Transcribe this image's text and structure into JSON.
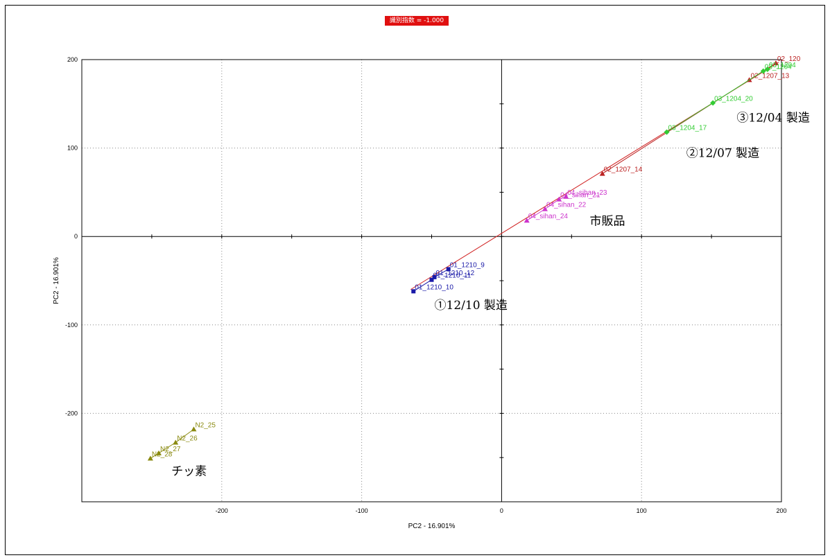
{
  "badge": {
    "text": "識別指数 = -1.000",
    "color": "#e01010"
  },
  "chart_data": {
    "type": "scatter",
    "title": "",
    "xlabel": "PC2 - 16.901%",
    "ylabel": "PC2 - 16.901%",
    "xlim": [
      -300,
      200
    ],
    "ylim": [
      -300,
      200
    ],
    "xticks": [
      -200,
      -100,
      0,
      100,
      200
    ],
    "yticks": [
      -200,
      -100,
      0,
      100,
      200
    ],
    "grid": true,
    "legend": "none",
    "loading_line": {
      "from": [
        -65,
        -60
      ],
      "to": [
        198,
        197
      ],
      "color": "#d02020"
    },
    "series": [
      {
        "color": "#1a1aa8",
        "marker": "square",
        "points": [
          {
            "label": "01_1210_9",
            "x": -38,
            "y": -37
          },
          {
            "label": "01_1210_12",
            "x": -48,
            "y": -46
          },
          {
            "label": "01_1210_11",
            "x": -50,
            "y": -49
          },
          {
            "label": "01_1210_10",
            "x": -63,
            "y": -62
          }
        ]
      },
      {
        "color": "#bb2222",
        "marker": "triangle",
        "points": [
          {
            "label": "02_1207_14",
            "x": 72,
            "y": 71
          },
          {
            "label": "02_1207_13",
            "x": 177,
            "y": 177
          },
          {
            "label": "02_120",
            "x": 196,
            "y": 196
          }
        ]
      },
      {
        "color": "#33cc33",
        "marker": "diamond",
        "points": [
          {
            "label": "03_1204_17",
            "x": 118,
            "y": 118
          },
          {
            "label": "03_1204_20",
            "x": 151,
            "y": 151
          },
          {
            "label": "03_1204",
            "x": 187,
            "y": 187
          },
          {
            "label": "03_1204",
            "x": 190,
            "y": 189
          }
        ]
      },
      {
        "color": "#cc33cc",
        "marker": "triangle",
        "points": [
          {
            "label": "04_sihan_23",
            "x": 46,
            "y": 45
          },
          {
            "label": "04_sihan_21",
            "x": 41,
            "y": 42
          },
          {
            "label": "04_sihan_22",
            "x": 31,
            "y": 31
          },
          {
            "label": "04_sihan_24",
            "x": 18,
            "y": 18
          }
        ]
      },
      {
        "color": "#8a8a10",
        "marker": "triangle",
        "points": [
          {
            "label": "N2_25",
            "x": -220,
            "y": -218
          },
          {
            "label": "N2_26",
            "x": -233,
            "y": -233
          },
          {
            "label": "N2_27",
            "x": -245,
            "y": -245
          },
          {
            "label": "N2_28",
            "x": -251,
            "y": -251
          }
        ]
      }
    ],
    "annotations": [
      {
        "text": "③12/04 製造",
        "x": 168,
        "y": 130
      },
      {
        "text": "②12/07 製造",
        "x": 132,
        "y": 90
      },
      {
        "text": "市販品",
        "x": 63,
        "y": 13
      },
      {
        "text": "①12/10 製造",
        "x": -48,
        "y": -82
      },
      {
        "text": "チッ素",
        "x": -236,
        "y": -270
      }
    ]
  }
}
